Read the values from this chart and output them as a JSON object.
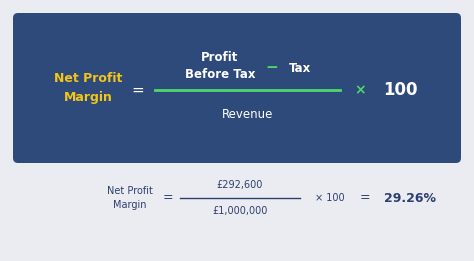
{
  "bg_color": "#eaecf2",
  "box_color": "#2d4a7a",
  "yellow_color": "#f5c518",
  "green_color": "#4cd96e",
  "white_color": "#ffffff",
  "dark_blue": "#2d3f6e",
  "label_net_profit": "Net Profit\nMargin",
  "label_profit_before_tax": "Profit\nBefore Tax",
  "label_tax": "Tax",
  "label_revenue": "Revenue",
  "label_100": "100",
  "label_equals": "=",
  "label_minus": "−",
  "label_times": "×",
  "calc_label": "Net Profit\nMargin",
  "calc_numerator": "£292,600",
  "calc_denominator": "£1,000,000",
  "calc_times": "× 100",
  "calc_equals": "=",
  "calc_result": "29.26%"
}
